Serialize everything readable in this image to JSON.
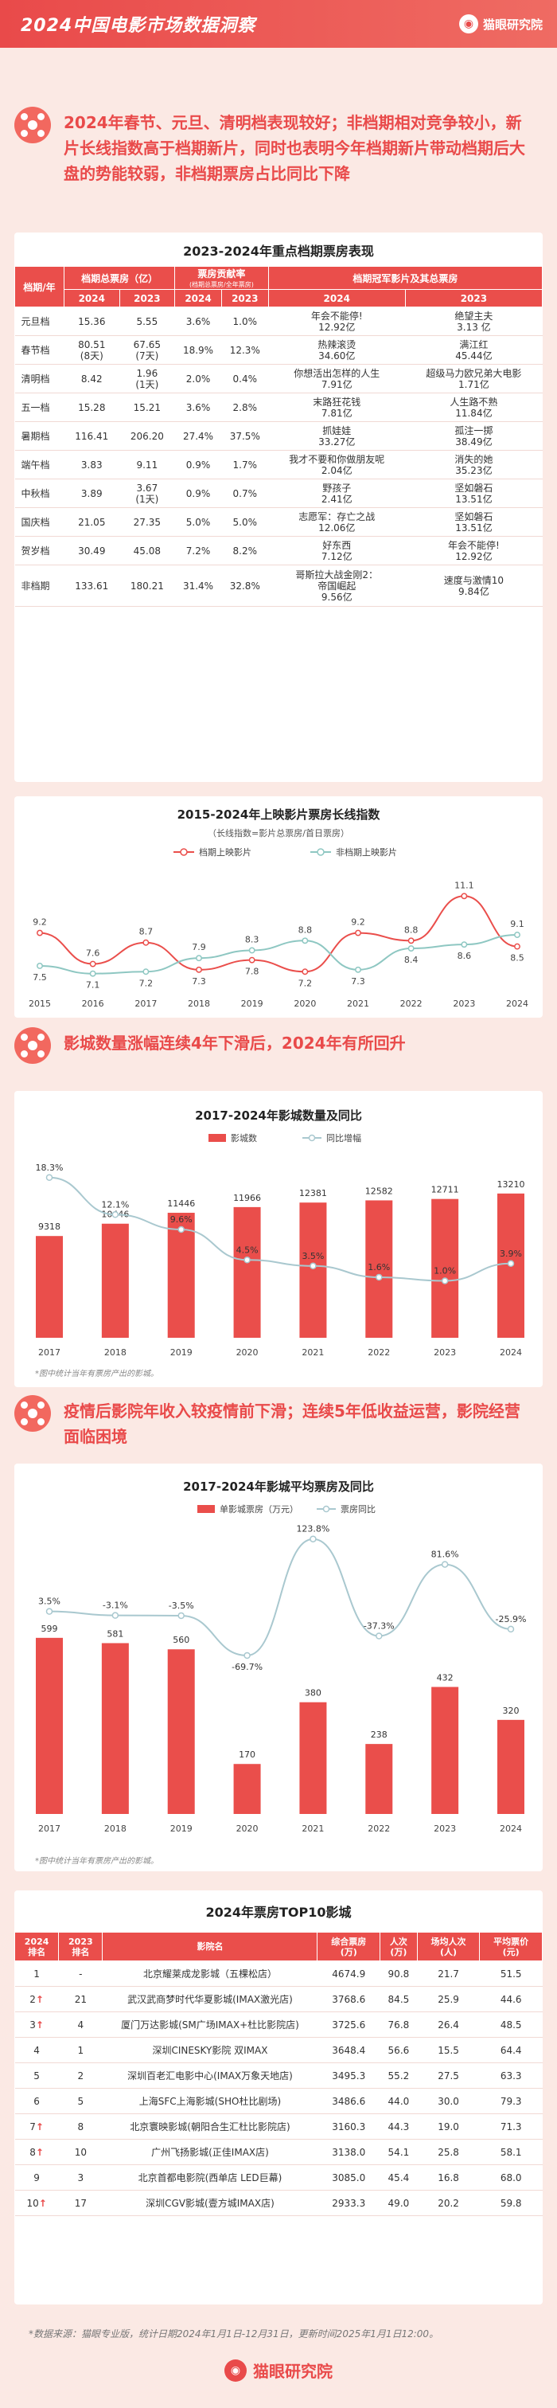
{
  "header": {
    "title": "2024中国电影市场数据洞察",
    "brand": "猫眼研究院"
  },
  "sections": [
    {
      "text": "2024年春节、元旦、清明档表现较好；非档期相对竞争较小，新片长线指数高于档期新片，同时也表明今年档期新片带动档期后大盘的势能较弱，非档期票房占比同比下降"
    },
    {
      "text": "影城数量涨幅连续4年下滑后，2024年有所回升"
    },
    {
      "text": "疫情后影院年收入较疫情前下滑；连续5年低收益运营，影院经营面临困境"
    }
  ],
  "table1": {
    "title": "2023-2024年重点档期票房表现",
    "headers": {
      "period": "档期/年",
      "box": "档期总票房（亿）",
      "share": "票房贡献率",
      "share_note": "(档期总票房/全年票房)",
      "champion": "档期冠军影片及其总票房",
      "y2024": "2024",
      "y2023": "2023"
    },
    "rows": [
      {
        "period": "元旦档",
        "b24": "15.36",
        "b23": "5.55",
        "s24": "3.6%",
        "s23": "1.0%",
        "c24": "年会不能停!\n12.92亿",
        "c23": "绝望主夫\n3.13 亿"
      },
      {
        "period": "春节档",
        "b24": "80.51\n(8天)",
        "b23": "67.65\n(7天)",
        "s24": "18.9%",
        "s23": "12.3%",
        "c24": "热辣滚烫\n34.60亿",
        "c23": "满江红\n45.44亿"
      },
      {
        "period": "清明档",
        "b24": "8.42",
        "b23": "1.96\n(1天)",
        "s24": "2.0%",
        "s23": "0.4%",
        "c24": "你想活出怎样的人生\n7.91亿",
        "c23": "超级马力欧兄弟大电影\n1.71亿"
      },
      {
        "period": "五一档",
        "b24": "15.28",
        "b23": "15.21",
        "s24": "3.6%",
        "s23": "2.8%",
        "c24": "末路狂花钱\n7.81亿",
        "c23": "人生路不熟\n11.84亿"
      },
      {
        "period": "暑期档",
        "b24": "116.41",
        "b23": "206.20",
        "s24": "27.4%",
        "s23": "37.5%",
        "c24": "抓娃娃\n33.27亿",
        "c23": "孤注一掷\n38.49亿"
      },
      {
        "period": "端午档",
        "b24": "3.83",
        "b23": "9.11",
        "s24": "0.9%",
        "s23": "1.7%",
        "c24": "我才不要和你做朋友呢\n2.04亿",
        "c23": "消失的她\n35.23亿"
      },
      {
        "period": "中秋档",
        "b24": "3.89",
        "b23": "3.67\n(1天)",
        "s24": "0.9%",
        "s23": "0.7%",
        "c24": "野孩子\n2.41亿",
        "c23": "坚如磐石\n13.51亿"
      },
      {
        "period": "国庆档",
        "b24": "21.05",
        "b23": "27.35",
        "s24": "5.0%",
        "s23": "5.0%",
        "c24": "志愿军：存亡之战\n12.06亿",
        "c23": "坚如磐石\n13.51亿"
      },
      {
        "period": "贺岁档",
        "b24": "30.49",
        "b23": "45.08",
        "s24": "7.2%",
        "s23": "8.2%",
        "c24": "好东西\n7.12亿",
        "c23": "年会不能停!\n12.92亿"
      },
      {
        "period": "非档期",
        "b24": "133.61",
        "b23": "180.21",
        "s24": "31.4%",
        "s23": "32.8%",
        "c24": "哥斯拉大战金刚2：\n帝国崛起\n9.56亿",
        "c23": "速度与激情10\n9.84亿"
      }
    ]
  },
  "chart_data": [
    {
      "type": "line",
      "title": "2015-2024年上映影片票房长线指数",
      "subtitle": "（长线指数=影片总票房/首日票房）",
      "x": [
        "2015",
        "2016",
        "2017",
        "2018",
        "2019",
        "2020",
        "2021",
        "2022",
        "2023",
        "2024"
      ],
      "series": [
        {
          "name": "档期上映影片",
          "color": "#ea4e4b",
          "values": [
            9.2,
            7.6,
            8.7,
            7.3,
            7.8,
            7.2,
            9.2,
            8.8,
            11.1,
            8.5
          ]
        },
        {
          "name": "非档期上映影片",
          "color": "#8ec7c2",
          "values": [
            7.5,
            7.1,
            7.2,
            7.9,
            8.3,
            8.8,
            7.3,
            8.4,
            8.6,
            9.1
          ]
        }
      ],
      "legend": "top-center"
    },
    {
      "type": "bar",
      "title": "2017-2024年影城数量及同比",
      "categories": [
        "2017",
        "2018",
        "2019",
        "2020",
        "2021",
        "2022",
        "2023",
        "2024"
      ],
      "series": [
        {
          "name": "影城数",
          "color": "#ea4e4b",
          "values": [
            9318,
            10446,
            11446,
            11966,
            12381,
            12582,
            12711,
            13210
          ]
        },
        {
          "name": "同比增幅",
          "color": "#a9c8cf",
          "type": "line",
          "values": [
            18.3,
            12.1,
            9.6,
            4.5,
            3.5,
            1.6,
            1.0,
            3.9
          ],
          "labels": [
            "18.3%",
            "12.1%",
            "9.6%",
            "4.5%",
            "3.5%",
            "1.6%",
            "1.0%",
            "3.9%"
          ]
        }
      ],
      "note": "*图中统计当年有票房产出的影城。"
    },
    {
      "type": "bar",
      "title": "2017-2024年影城平均票房及同比",
      "categories": [
        "2017",
        "2018",
        "2019",
        "2020",
        "2021",
        "2022",
        "2023",
        "2024"
      ],
      "series": [
        {
          "name": "单影城票房（万元）",
          "color": "#ea4e4b",
          "values": [
            599,
            581,
            560,
            170,
            380,
            238,
            432,
            320
          ]
        },
        {
          "name": "票房同比",
          "color": "#a9c8cf",
          "type": "line",
          "values": [
            3.5,
            -3.1,
            -3.5,
            -69.7,
            123.8,
            -37.3,
            81.6,
            -25.9
          ],
          "labels": [
            "3.5%",
            "-3.1%",
            "-3.5%",
            "-69.7%",
            "123.8%",
            "-37.3%",
            "81.6%",
            "-25.9%"
          ]
        }
      ],
      "note": "*图中统计当年有票房产出的影城。"
    }
  ],
  "table2": {
    "title": "2024年票房TOP10影城",
    "headers": [
      "2024\n排名",
      "2023\n排名",
      "影院名",
      "综合票房\n(万)",
      "人次\n(万)",
      "场均人次\n(人)",
      "平均票价\n(元)"
    ],
    "rows": [
      {
        "r24": "1",
        "up": false,
        "r23": "-",
        "name": "北京耀莱成龙影城（五棵松店）",
        "box": "4674.9",
        "ppl": "90.8",
        "avg": "21.7",
        "price": "51.5"
      },
      {
        "r24": "2",
        "up": true,
        "r23": "21",
        "name": "武汉武商梦时代华夏影城(IMAX激光店)",
        "box": "3768.6",
        "ppl": "84.5",
        "avg": "25.9",
        "price": "44.6"
      },
      {
        "r24": "3",
        "up": true,
        "r23": "4",
        "name": "厦门万达影城(SM广场IMAX+杜比影院店)",
        "box": "3725.6",
        "ppl": "76.8",
        "avg": "26.4",
        "price": "48.5"
      },
      {
        "r24": "4",
        "up": false,
        "r23": "1",
        "name": "深圳CINESKY影院 双IMAX",
        "box": "3648.4",
        "ppl": "56.6",
        "avg": "15.5",
        "price": "64.4"
      },
      {
        "r24": "5",
        "up": false,
        "r23": "2",
        "name": "深圳百老汇电影中心(IMAX万象天地店)",
        "box": "3495.3",
        "ppl": "55.2",
        "avg": "27.5",
        "price": "63.3"
      },
      {
        "r24": "6",
        "up": false,
        "r23": "5",
        "name": "上海SFC上海影城(SHO杜比剧场)",
        "box": "3486.6",
        "ppl": "44.0",
        "avg": "30.0",
        "price": "79.3"
      },
      {
        "r24": "7",
        "up": true,
        "r23": "8",
        "name": "北京寰映影城(朝阳合生汇杜比影院店)",
        "box": "3160.3",
        "ppl": "44.3",
        "avg": "19.0",
        "price": "71.3"
      },
      {
        "r24": "8",
        "up": true,
        "r23": "10",
        "name": "广州飞扬影城(正佳IMAX店)",
        "box": "3138.0",
        "ppl": "54.1",
        "avg": "25.8",
        "price": "58.1"
      },
      {
        "r24": "9",
        "up": false,
        "r23": "3",
        "name": "北京首都电影院(西单店 LED巨幕)",
        "box": "3085.0",
        "ppl": "45.4",
        "avg": "16.8",
        "price": "68.0"
      },
      {
        "r24": "10",
        "up": true,
        "r23": "17",
        "name": "深圳CGV影城(壹方城IMAX店)",
        "box": "2933.3",
        "ppl": "49.0",
        "avg": "20.2",
        "price": "59.8"
      }
    ]
  },
  "footer": {
    "source": "*数据来源：猫眼专业版，统计日期2024年1月1日-12月31日，更新时间2025年1月1日12:00。",
    "brand": "猫眼研究院"
  }
}
